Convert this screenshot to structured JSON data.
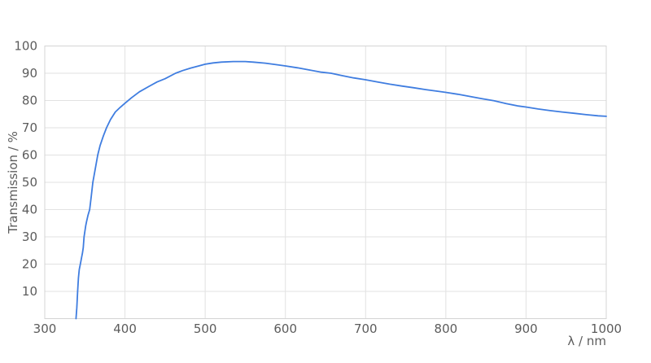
{
  "style": {
    "background": "#ffffff",
    "grid_color": "#e2e2e2",
    "border_color": "#d4d4d4",
    "text_color": "#5c5c5c",
    "accent": "#3f7de0"
  },
  "chart_data": {
    "type": "line",
    "title": "",
    "xlabel": "λ / nm",
    "ylabel": "Transmission / %",
    "xlim": [
      300,
      1000
    ],
    "ylim": [
      0,
      100
    ],
    "x_ticks": [
      300,
      400,
      500,
      600,
      700,
      800,
      900,
      1000
    ],
    "y_ticks": [
      10,
      20,
      30,
      40,
      50,
      60,
      70,
      80,
      90,
      100
    ],
    "grid": true,
    "legend": "none",
    "series": [
      {
        "name": "Transmission",
        "color": "#3f7de0",
        "points": [
          [
            339,
            0
          ],
          [
            340,
            4
          ],
          [
            341,
            10
          ],
          [
            342,
            15
          ],
          [
            343,
            18
          ],
          [
            344,
            19.5
          ],
          [
            345,
            21
          ],
          [
            346,
            22.5
          ],
          [
            347,
            24
          ],
          [
            348,
            26
          ],
          [
            349,
            30
          ],
          [
            351,
            34
          ],
          [
            352,
            35.5
          ],
          [
            354,
            38
          ],
          [
            356,
            40
          ],
          [
            358,
            45
          ],
          [
            360,
            50
          ],
          [
            363,
            55
          ],
          [
            366,
            60
          ],
          [
            369,
            63.5
          ],
          [
            373,
            67
          ],
          [
            377,
            70
          ],
          [
            382,
            73
          ],
          [
            388,
            75.8
          ],
          [
            394,
            77.5
          ],
          [
            400,
            79
          ],
          [
            408,
            81
          ],
          [
            418,
            83.2
          ],
          [
            430,
            85.2
          ],
          [
            440,
            86.8
          ],
          [
            450,
            88
          ],
          [
            463,
            90
          ],
          [
            472,
            91
          ],
          [
            482,
            91.9
          ],
          [
            492,
            92.7
          ],
          [
            500,
            93.3
          ],
          [
            510,
            93.8
          ],
          [
            520,
            94.1
          ],
          [
            535,
            94.3
          ],
          [
            550,
            94.3
          ],
          [
            560,
            94.1
          ],
          [
            575,
            93.7
          ],
          [
            590,
            93.1
          ],
          [
            600,
            92.7
          ],
          [
            615,
            92.0
          ],
          [
            630,
            91.2
          ],
          [
            645,
            90.4
          ],
          [
            657,
            90.0
          ],
          [
            670,
            89.2
          ],
          [
            685,
            88.3
          ],
          [
            700,
            87.6
          ],
          [
            715,
            86.8
          ],
          [
            730,
            86.0
          ],
          [
            745,
            85.3
          ],
          [
            760,
            84.7
          ],
          [
            775,
            84.0
          ],
          [
            790,
            83.4
          ],
          [
            800,
            83.0
          ],
          [
            815,
            82.3
          ],
          [
            830,
            81.5
          ],
          [
            845,
            80.7
          ],
          [
            860,
            79.9
          ],
          [
            875,
            78.9
          ],
          [
            890,
            78.0
          ],
          [
            900,
            77.6
          ],
          [
            915,
            76.9
          ],
          [
            930,
            76.3
          ],
          [
            945,
            75.8
          ],
          [
            960,
            75.3
          ],
          [
            975,
            74.8
          ],
          [
            990,
            74.4
          ],
          [
            1000,
            74.2
          ]
        ]
      }
    ]
  }
}
